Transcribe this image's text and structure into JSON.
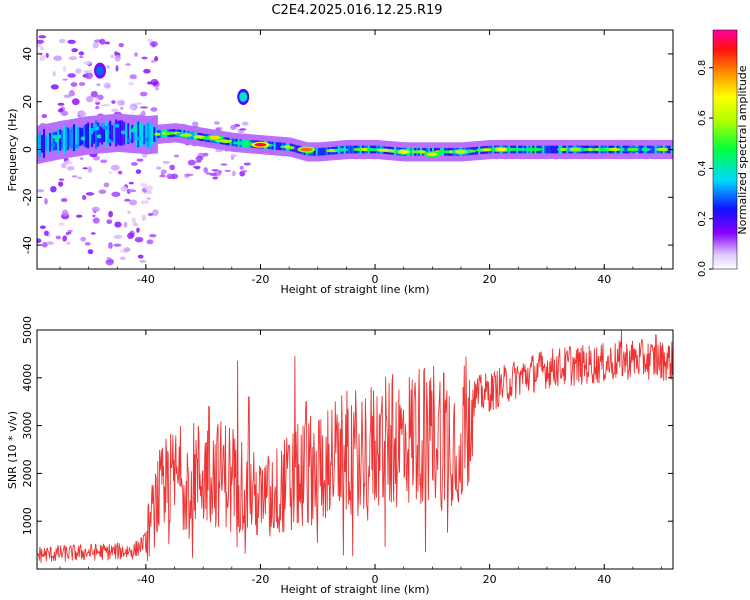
{
  "title": "C2E4.2025.016.12.25.R19",
  "chart_data": [
    {
      "type": "heatmap",
      "xlabel": "Height of straight line (km)",
      "ylabel": "Frequency (Hz)",
      "xlim": [
        -59,
        52
      ],
      "ylim": [
        -50,
        50
      ],
      "xticks": [
        -40,
        -20,
        0,
        20,
        40
      ],
      "yticks": [
        -40,
        -20,
        0,
        20,
        40
      ],
      "colorbar": {
        "label": "Normalized spectral amplitude",
        "range": [
          0,
          0.95
        ],
        "ticks": [
          0.0,
          0.2,
          0.4,
          0.6,
          0.8
        ]
      },
      "ridge": {
        "x": [
          -59,
          -55,
          -50,
          -45,
          -40,
          -35,
          -30,
          -25,
          -20,
          -15,
          -12,
          -10,
          -5,
          0,
          5,
          10,
          15,
          20,
          25,
          30,
          35,
          40,
          45,
          52
        ],
        "y": [
          2,
          4,
          6,
          7,
          6,
          7,
          5,
          3,
          2,
          1,
          -1,
          -1,
          0,
          0,
          -1,
          -1,
          -1,
          0,
          0,
          0,
          0,
          0,
          0,
          0
        ],
        "peaks": [
          {
            "x": -20,
            "y": 2,
            "amp": 0.95
          },
          {
            "x": -12,
            "y": 0,
            "amp": 0.85
          },
          {
            "x": -28,
            "y": 5,
            "amp": 0.75
          },
          {
            "x": 5,
            "y": -1,
            "amp": 0.7
          },
          {
            "x": 10,
            "y": -2,
            "amp": 0.75
          },
          {
            "x": 15,
            "y": -1,
            "amp": 0.65
          },
          {
            "x": 22,
            "y": 0,
            "amp": 0.7
          },
          {
            "x": -33,
            "y": 6,
            "amp": 0.6
          },
          {
            "x": 35,
            "y": 0,
            "amp": 0.6
          },
          {
            "x": 45,
            "y": 0,
            "amp": 0.55
          }
        ]
      },
      "blobs": [
        {
          "x": -23,
          "y": 22,
          "amp": 0.4
        },
        {
          "x": -48,
          "y": 33,
          "amp": 0.3
        }
      ]
    },
    {
      "type": "line",
      "xlabel": "Height of straight line (km)",
      "ylabel": "SNR (10 * v/v)",
      "xlim": [
        -59,
        52
      ],
      "ylim": [
        0,
        5000
      ],
      "xticks": [
        -40,
        -20,
        0,
        20,
        40
      ],
      "yticks": [
        1000,
        2000,
        3000,
        4000,
        5000
      ],
      "color": "#ee3333",
      "trend": {
        "x": [
          -59,
          -50,
          -42,
          -40,
          -38,
          -35,
          -30,
          -25,
          -20,
          -15,
          -10,
          -5,
          0,
          5,
          10,
          15,
          17,
          20,
          25,
          30,
          35,
          40,
          45,
          52
        ],
        "y": [
          300,
          350,
          380,
          600,
          1500,
          1900,
          2000,
          2000,
          1400,
          1800,
          2200,
          2400,
          2550,
          2700,
          2900,
          2700,
          3600,
          3700,
          4000,
          4200,
          4250,
          4300,
          4400,
          4350
        ]
      },
      "spikes": [
        {
          "x": -37,
          "y": 1950
        },
        {
          "x": -29,
          "y": 3400
        },
        {
          "x": -24,
          "y": 4350
        },
        {
          "x": -22,
          "y": 3600
        },
        {
          "x": -14,
          "y": 4450
        },
        {
          "x": -12,
          "y": 3500
        },
        {
          "x": 1,
          "y": 3200
        },
        {
          "x": 7,
          "y": 3900
        },
        {
          "x": 9,
          "y": 3900
        },
        {
          "x": 12,
          "y": 4100
        },
        {
          "x": 34,
          "y": 4650
        },
        {
          "x": 43,
          "y": 5000
        },
        {
          "x": 49,
          "y": 4900
        }
      ]
    }
  ]
}
